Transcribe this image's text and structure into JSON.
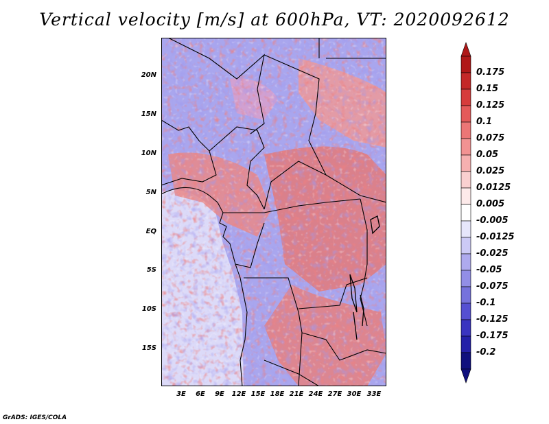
{
  "title": "Vertical velocity [m/s] at 600hPa, VT: 2020092612",
  "credit": "GrADS: IGES/COLA",
  "lat_labels": [
    "20N",
    "15N",
    "10N",
    "5N",
    "EQ",
    "5S",
    "10S",
    "15S"
  ],
  "lon_labels": [
    "3E",
    "6E",
    "9E",
    "12E",
    "15E",
    "18E",
    "21E",
    "24E",
    "27E",
    "30E",
    "33E"
  ],
  "colorbar": {
    "labels": [
      "0.175",
      "0.15",
      "0.125",
      "0.1",
      "0.075",
      "0.05",
      "0.025",
      "0.0125",
      "0.005",
      "-0.005",
      "-0.0125",
      "-0.025",
      "-0.05",
      "-0.075",
      "-0.1",
      "-0.125",
      "-0.175",
      "-0.2"
    ],
    "colors": [
      "#b01818",
      "#c42828",
      "#d63c3c",
      "#e45a5a",
      "#ec7676",
      "#f29292",
      "#f6b0b0",
      "#fad0d0",
      "#fdeaea",
      "#ffffff",
      "#e6e6fb",
      "#cccaf6",
      "#aeaaee",
      "#928ee6",
      "#7672dc",
      "#5550d2",
      "#3a34c0",
      "#2420a8",
      "#10107e"
    ]
  }
}
